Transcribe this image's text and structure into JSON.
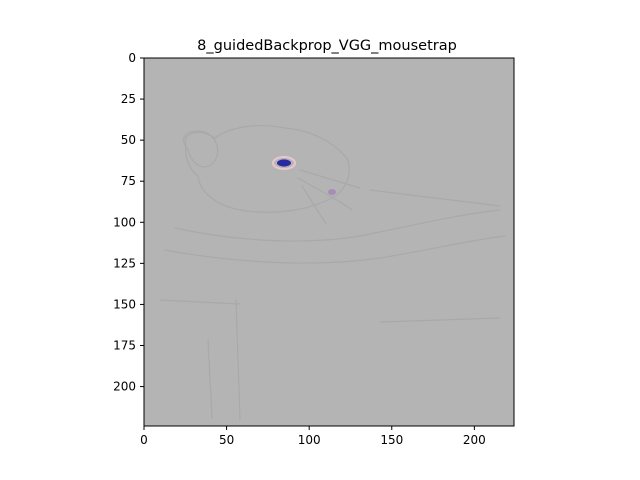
{
  "figure": {
    "title": "8_guidedBackprop_VGG_mousetrap",
    "background_color": "#ffffff",
    "image_background": "#b4b4b4",
    "outline_color": "#a9a9a9",
    "highlight_colors": [
      "#2a2aa0",
      "#9a6bb8",
      "#e8c8cc"
    ]
  },
  "axes": {
    "x_range": [
      0,
      224
    ],
    "y_range": [
      0,
      224
    ],
    "y_inverted": true,
    "x_ticks": [
      {
        "value": 0,
        "label": "0"
      },
      {
        "value": 50,
        "label": "50"
      },
      {
        "value": 100,
        "label": "100"
      },
      {
        "value": 150,
        "label": "150"
      },
      {
        "value": 200,
        "label": "200"
      }
    ],
    "y_ticks": [
      {
        "value": 0,
        "label": "0"
      },
      {
        "value": 25,
        "label": "25"
      },
      {
        "value": 50,
        "label": "50"
      },
      {
        "value": 75,
        "label": "75"
      },
      {
        "value": 100,
        "label": "100"
      },
      {
        "value": 125,
        "label": "125"
      },
      {
        "value": 150,
        "label": "150"
      },
      {
        "value": 175,
        "label": "175"
      },
      {
        "value": 200,
        "label": "200"
      }
    ]
  }
}
